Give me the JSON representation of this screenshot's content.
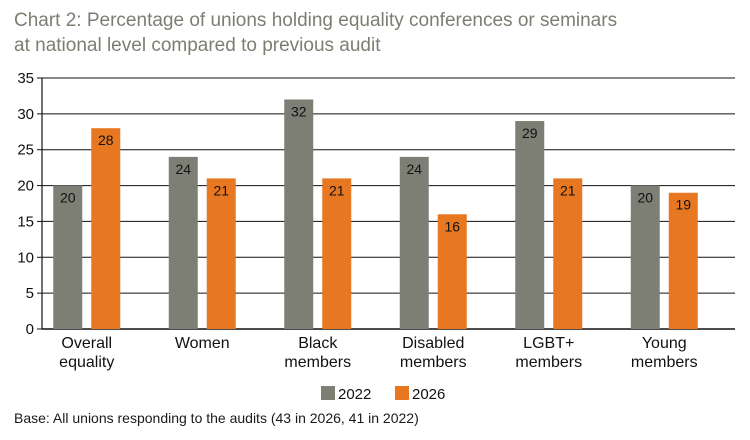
{
  "title_line1": "Chart 2: Percentage of unions holding equality conferences or seminars",
  "title_line2": "at national level compared to previous audit",
  "base_note": "Base: All unions responding to the audits (43 in 2026, 41 in 2022)",
  "colors": {
    "s2022": "#7e7f74",
    "s2026": "#e87722",
    "axis": "#111111",
    "grid": "#111111"
  },
  "chart_data": {
    "type": "bar",
    "title": "Chart 2: Percentage of unions holding equality conferences or seminars at national level compared to previous audit",
    "categories": [
      [
        "Overall",
        "equality"
      ],
      [
        "Women"
      ],
      [
        "Black",
        "members"
      ],
      [
        "Disabled",
        "members"
      ],
      [
        "LGBT+",
        "members"
      ],
      [
        "Young",
        "members"
      ]
    ],
    "series": [
      {
        "name": "2022",
        "values": [
          20,
          24,
          32,
          24,
          29,
          20
        ]
      },
      {
        "name": "2026",
        "values": [
          28,
          21,
          21,
          16,
          21,
          19
        ]
      }
    ],
    "ylim": [
      0,
      35
    ],
    "yticks": [
      0,
      5,
      10,
      15,
      20,
      25,
      30,
      35
    ],
    "grid": true,
    "legend": "bottom-center",
    "data_labels": true
  }
}
